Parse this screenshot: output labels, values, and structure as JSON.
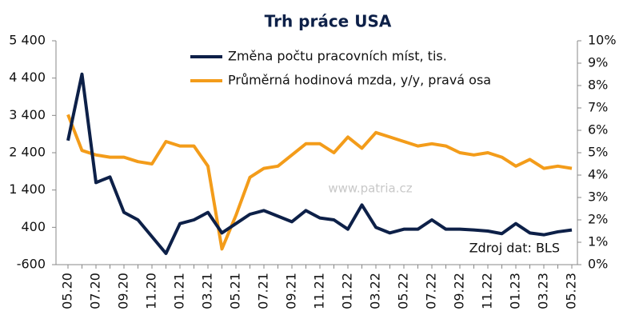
{
  "chart_data": {
    "type": "line",
    "title": "Trh práce USA",
    "categories": [
      "05.20",
      null,
      "07.20",
      null,
      "09.20",
      null,
      "11.20",
      null,
      "01.21",
      null,
      "03.21",
      null,
      "05.21",
      null,
      "07.21",
      null,
      "09.21",
      null,
      "11.21",
      null,
      "01.22",
      null,
      "03.22",
      null,
      "05.22",
      null,
      "07.22",
      null,
      "09.22",
      null,
      "11.22",
      null,
      "01.23",
      null,
      "03.23",
      null,
      "05.23"
    ],
    "series": [
      {
        "name": "Změna počtu pracovních míst, tis.",
        "color": "#0d2048",
        "values": [
          2725,
          4505,
          1600,
          1750,
          800,
          600,
          150,
          -300,
          500,
          600,
          800,
          250,
          500,
          750,
          850,
          700,
          550,
          850,
          650,
          600,
          350,
          1000,
          400,
          250,
          350,
          350,
          600,
          350,
          350,
          330,
          300,
          230,
          500,
          250,
          200,
          280,
          330
        ]
      },
      {
        "name": "Průměrná hodinová mzda, y/y, pravá osa",
        "color": "#f39c1a",
        "axis": "y2",
        "values": [
          6.7,
          5.1,
          4.9,
          4.8,
          4.8,
          4.6,
          4.5,
          5.5,
          5.3,
          5.3,
          4.4,
          0.7,
          2.2,
          3.9,
          4.3,
          4.4,
          4.9,
          5.4,
          5.4,
          5.0,
          5.7,
          5.2,
          5.9,
          5.7,
          5.5,
          5.3,
          5.4,
          5.3,
          5.0,
          4.9,
          5.0,
          4.8,
          4.4,
          4.7,
          4.3,
          4.4,
          4.3
        ]
      }
    ],
    "ylim": [
      -600,
      5400
    ],
    "yticks": [
      -600,
      400,
      {
        "value": 1400,
        "label": "1 400"
      },
      {
        "value": 2400,
        "label": "2 400"
      },
      {
        "value": 3400,
        "label": "3 400"
      },
      {
        "value": 4400,
        "label": "4 400"
      },
      {
        "value": 5400,
        "label": "5 400"
      }
    ],
    "y2lim": [
      0,
      10
    ],
    "y2ticks": [
      {
        "value": 0,
        "label": "0%"
      },
      {
        "value": 1,
        "label": "1%"
      },
      {
        "value": 2,
        "label": "2%"
      },
      {
        "value": 3,
        "label": "3%"
      },
      {
        "value": 4,
        "label": "4%"
      },
      {
        "value": 5,
        "label": "5%"
      },
      {
        "value": 6,
        "label": "6%"
      },
      {
        "value": 7,
        "label": "7%"
      },
      {
        "value": 8,
        "label": "8%"
      },
      {
        "value": 9,
        "label": "9%"
      },
      {
        "value": 10,
        "label": "10%"
      }
    ],
    "annotations": [
      "www.patria.cz",
      "Zdroj dat: BLS"
    ],
    "legend": "upper center"
  }
}
